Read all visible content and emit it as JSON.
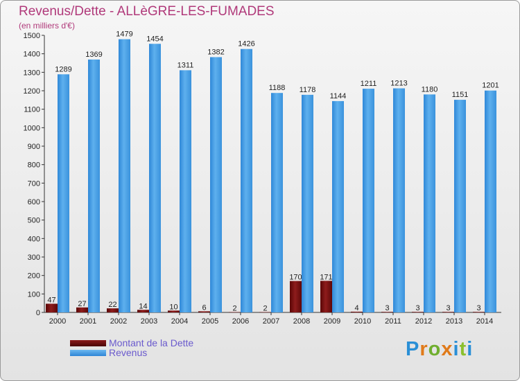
{
  "title": "Revenus/Dette - ALLèGRE-LES-FUMADES",
  "subtitle": "(en milliers d'€)",
  "logo": {
    "text": "Proxiti"
  },
  "legend": [
    {
      "label": "Montant de la Dette",
      "color": "#6b0a0a"
    },
    {
      "label": "Revenus",
      "color": "#4da3e6"
    }
  ],
  "chart_data": {
    "type": "bar",
    "categories": [
      "2000",
      "2001",
      "2002",
      "2003",
      "2004",
      "2005",
      "2006",
      "2007",
      "2008",
      "2009",
      "2010",
      "2011",
      "2012",
      "2013",
      "2014"
    ],
    "series": [
      {
        "name": "Montant de la Dette",
        "color": "#6b0a0a",
        "values": [
          47,
          27,
          22,
          14,
          10,
          6,
          2,
          2,
          170,
          171,
          4,
          3,
          3,
          3,
          3
        ]
      },
      {
        "name": "Revenus",
        "color": "#4da3e6",
        "values": [
          1289,
          1369,
          1479,
          1454,
          1311,
          1382,
          1426,
          1188,
          1178,
          1144,
          1211,
          1213,
          1180,
          1151,
          1201
        ]
      }
    ],
    "ylim": [
      0,
      1500
    ],
    "yticks": [
      0,
      100,
      200,
      300,
      400,
      500,
      600,
      700,
      800,
      900,
      1000,
      1100,
      1200,
      1300,
      1400,
      1500
    ],
    "grid": false,
    "legend_position": "bottom-left"
  }
}
